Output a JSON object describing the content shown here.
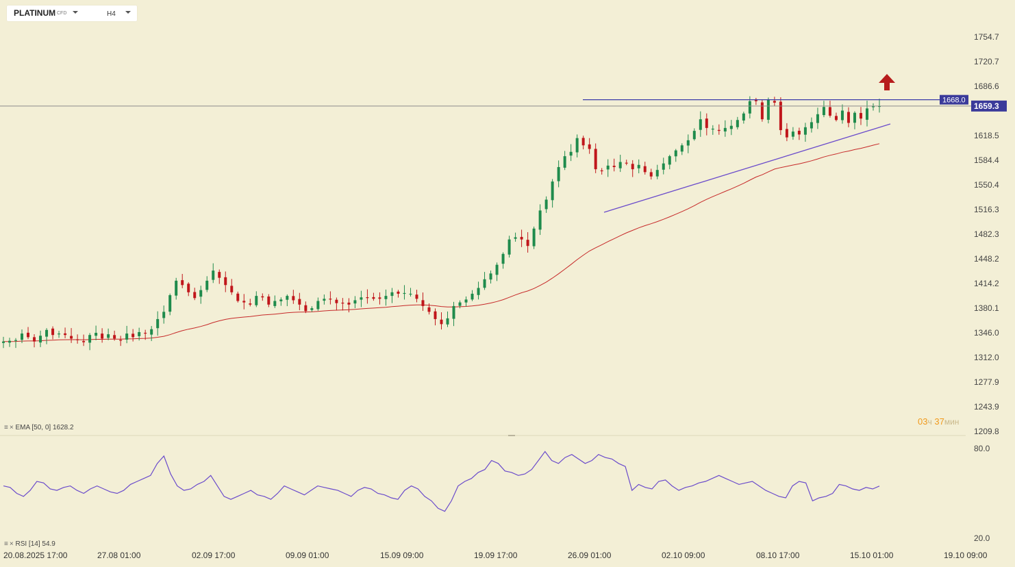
{
  "symbol": {
    "name": "PLATINUM",
    "type": "CFD",
    "timeframe": "H4"
  },
  "timer": {
    "hours": "03",
    "hours_unit": "ч",
    "minutes": "37",
    "minutes_unit": "мин"
  },
  "colors": {
    "background": "#f3efd6",
    "up": "#1f8b4c",
    "down": "#c0161b",
    "ema": "#c62828",
    "rsi": "#6a4bcb",
    "trendline": "#6a4bcb",
    "resistance": "#3a3aa8",
    "price_label": "#3a3a9a",
    "arrow": "#b71c1c"
  },
  "indicators": {
    "ema": {
      "icon": "≡",
      "label": "EMA",
      "params": "[50, 0]",
      "value": "1628.2"
    },
    "rsi": {
      "icon": "≡",
      "label": "RSI",
      "params": "[14]",
      "value": "54.9"
    }
  },
  "chart_data": [
    {
      "type": "candlestick",
      "title": "",
      "symbol": "PLATINUM",
      "timeframe": "H4",
      "y_ticks": [
        "1754.7",
        "1720.7",
        "1686.6",
        "1659.3",
        "1618.5",
        "1584.4",
        "1550.4",
        "1516.3",
        "1482.3",
        "1448.2",
        "1414.2",
        "1380.1",
        "1346.0",
        "1312.0",
        "1277.9",
        "1243.9",
        "1209.8"
      ],
      "ylim": [
        1209.8,
        1754.7
      ],
      "x_ticks": [
        "20.08.2025  17:00",
        "27.08  01:00",
        "02.09  17:00",
        "09.09  01:00",
        "15.09  09:00",
        "19.09  17:00",
        "26.09  01:00",
        "02.10  09:00",
        "08.10  17:00",
        "15.10  01:00",
        "19.10  09:00"
      ],
      "current_price": "1659.3",
      "resistance_level": "1668.0",
      "ema_period": 50,
      "ema_last": 1628.2,
      "close_series": [
        1334,
        1335,
        1336,
        1345,
        1340,
        1334,
        1342,
        1350,
        1343,
        1345,
        1343,
        1338,
        1336,
        1333,
        1343,
        1346,
        1338,
        1344,
        1338,
        1336,
        1345,
        1340,
        1347,
        1345,
        1351,
        1365,
        1375,
        1398,
        1418,
        1412,
        1402,
        1394,
        1405,
        1418,
        1432,
        1422,
        1412,
        1402,
        1390,
        1388,
        1385,
        1397,
        1395,
        1385,
        1390,
        1392,
        1397,
        1391,
        1385,
        1376,
        1380,
        1390,
        1393,
        1392,
        1387,
        1387,
        1385,
        1391,
        1395,
        1394,
        1393,
        1393,
        1397,
        1402,
        1400,
        1401,
        1400,
        1393,
        1383,
        1375,
        1365,
        1358,
        1366,
        1383,
        1388,
        1392,
        1400,
        1408,
        1420,
        1428,
        1440,
        1455,
        1475,
        1478,
        1475,
        1466,
        1490,
        1515,
        1530,
        1555,
        1575,
        1590,
        1596,
        1615,
        1605,
        1600,
        1572,
        1570,
        1577,
        1575,
        1582,
        1580,
        1572,
        1578,
        1568,
        1562,
        1571,
        1580,
        1590,
        1598,
        1605,
        1612,
        1625,
        1641,
        1629,
        1628,
        1625,
        1629,
        1632,
        1640,
        1649,
        1666,
        1666,
        1641,
        1668,
        1664,
        1626,
        1616,
        1624,
        1620,
        1630,
        1637,
        1648,
        1658,
        1646,
        1640,
        1653,
        1636,
        1650,
        1642,
        1656,
        1659,
        1659.3
      ],
      "rsi_series": [
        55,
        54,
        50,
        48,
        52,
        58,
        57,
        53,
        52,
        54,
        55,
        52,
        50,
        53,
        55,
        53,
        51,
        50,
        52,
        56,
        58,
        60,
        62,
        70,
        75,
        63,
        55,
        52,
        53,
        56,
        58,
        62,
        55,
        48,
        46,
        48,
        50,
        52,
        49,
        48,
        46,
        50,
        55,
        53,
        51,
        49,
        52,
        55,
        54,
        53,
        52,
        50,
        48,
        52,
        54,
        53,
        50,
        49,
        47,
        46,
        52,
        55,
        53,
        48,
        45,
        40,
        38,
        45,
        55,
        58,
        60,
        64,
        66,
        72,
        70,
        65,
        64,
        62,
        63,
        66,
        72,
        78,
        72,
        70,
        74,
        76,
        73,
        70,
        72,
        76,
        74,
        73,
        70,
        68,
        52,
        56,
        54,
        53,
        58,
        59,
        55,
        52,
        54,
        55,
        57,
        58,
        60,
        62,
        60,
        58,
        56,
        57,
        58,
        55,
        52,
        50,
        48,
        47,
        55,
        58,
        57,
        45,
        47,
        48,
        50,
        56,
        55,
        53,
        52,
        54,
        53,
        54.9
      ],
      "rsi_ticks": [
        "80.0",
        "20.0"
      ],
      "rsi_ylim": [
        20,
        80
      ]
    }
  ]
}
